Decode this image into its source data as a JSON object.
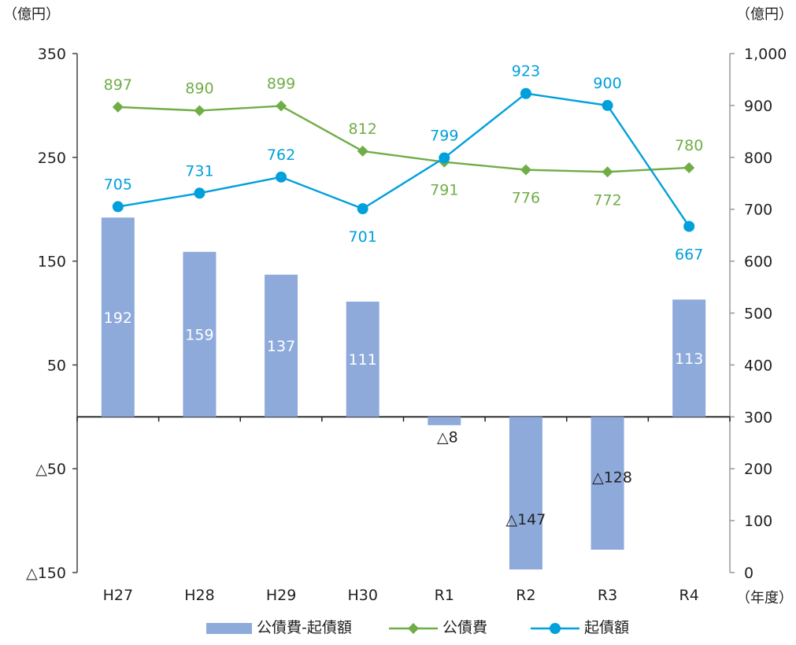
{
  "chart_data": {
    "type": "bar+line",
    "title": "",
    "categories": [
      "H27",
      "H28",
      "H29",
      "H30",
      "R1",
      "R2",
      "R3",
      "R4"
    ],
    "x_unit": "（年度）",
    "left_axis": {
      "unit": "（億円）",
      "range": [
        -150,
        350
      ],
      "ticks": [
        350,
        250,
        150,
        50,
        -50,
        -150
      ],
      "tick_labels": [
        "350",
        "250",
        "150",
        "50",
        "△50",
        "△150"
      ]
    },
    "right_axis": {
      "unit": "（億円）",
      "range": [
        0,
        1000
      ],
      "ticks": [
        1000,
        900,
        800,
        700,
        600,
        500,
        400,
        300,
        200,
        100,
        0
      ],
      "tick_labels": [
        "1,000",
        "900",
        "800",
        "700",
        "600",
        "500",
        "400",
        "300",
        "200",
        "100",
        "0"
      ]
    },
    "bar_series": {
      "name": "公債費-起債額",
      "axis": "left",
      "color": "#8eaadb",
      "values": [
        192,
        159,
        137,
        111,
        -8,
        -147,
        -128,
        113
      ],
      "labels": [
        "192",
        "159",
        "137",
        "111",
        "△8",
        "△147",
        "△128",
        "113"
      ]
    },
    "line_series": [
      {
        "name": "公債費",
        "axis": "right",
        "color": "#70ad47",
        "marker": "diamond",
        "values": [
          897,
          890,
          899,
          812,
          791,
          776,
          772,
          780
        ],
        "labels": [
          "897",
          "890",
          "899",
          "812",
          "791",
          "776",
          "772",
          "780"
        ]
      },
      {
        "name": "起債額",
        "axis": "right",
        "color": "#00a0dc",
        "marker": "circle",
        "values": [
          705,
          731,
          762,
          701,
          799,
          923,
          900,
          667
        ],
        "labels": [
          "705",
          "731",
          "762",
          "701",
          "799",
          "923",
          "900",
          "667"
        ]
      }
    ],
    "legend": {
      "placement": "bottom",
      "items": [
        "公債費-起債額",
        "公債費",
        "起債額"
      ]
    },
    "grid": false
  }
}
